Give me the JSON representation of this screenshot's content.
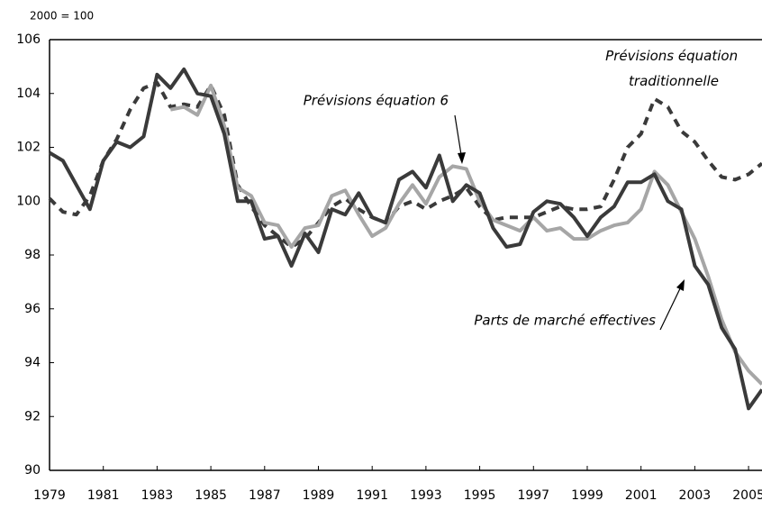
{
  "chart_data": {
    "type": "line",
    "subtitle": "2000 = 100",
    "x": [
      1979,
      1979.5,
      1980,
      1980.5,
      1981,
      1981.5,
      1982,
      1982.5,
      1983,
      1983.5,
      1984,
      1984.5,
      1985,
      1985.5,
      1986,
      1986.5,
      1987,
      1987.5,
      1988,
      1988.5,
      1989,
      1989.5,
      1990,
      1990.5,
      1991,
      1991.5,
      1992,
      1992.5,
      1993,
      1993.5,
      1994,
      1994.5,
      1995,
      1995.5,
      1996,
      1996.5,
      1997,
      1997.5,
      1998,
      1998.5,
      1999,
      1999.5,
      2000,
      2000.5,
      2001,
      2001.5,
      2002,
      2002.5,
      2003,
      2003.5,
      2004,
      2004.5,
      2005,
      2005.5
    ],
    "series": [
      {
        "name": "Parts de marché effectives",
        "color": "#3a3a3a",
        "dash": false,
        "values": [
          101.8,
          101.5,
          100.6,
          99.7,
          101.5,
          102.2,
          102.0,
          102.4,
          104.7,
          104.2,
          104.9,
          104.0,
          103.9,
          102.5,
          100.0,
          100.0,
          98.6,
          98.7,
          97.6,
          98.8,
          98.1,
          99.7,
          99.5,
          100.3,
          99.4,
          99.2,
          100.8,
          101.1,
          100.5,
          101.7,
          100.0,
          100.6,
          100.3,
          99.0,
          98.3,
          98.4,
          99.6,
          100.0,
          99.9,
          99.4,
          98.7,
          99.4,
          99.8,
          100.7,
          100.7,
          101.0,
          100.0,
          99.7,
          97.6,
          96.9,
          95.3,
          94.5,
          92.3,
          93.0
        ]
      },
      {
        "name": "Prévisions équation 6",
        "color": "#a6a6a6",
        "dash": false,
        "values": [
          null,
          null,
          null,
          null,
          null,
          null,
          null,
          null,
          null,
          103.4,
          103.5,
          103.2,
          104.3,
          102.8,
          100.5,
          100.2,
          99.2,
          99.1,
          98.3,
          99.0,
          99.1,
          100.2,
          100.4,
          99.5,
          98.7,
          99.0,
          99.9,
          100.6,
          99.9,
          100.9,
          101.3,
          101.2,
          100.0,
          99.3,
          99.1,
          98.9,
          99.4,
          98.9,
          99.0,
          98.6,
          98.6,
          98.9,
          99.1,
          99.2,
          99.7,
          101.1,
          100.6,
          99.6,
          98.6,
          97.2,
          95.6,
          94.4,
          93.7,
          93.2
        ]
      },
      {
        "name": "Prévisions équation traditionnelle",
        "color": "#3a3a3a",
        "dash": true,
        "values": [
          100.1,
          99.6,
          99.5,
          100.2,
          101.5,
          102.3,
          103.4,
          104.2,
          104.4,
          103.5,
          103.6,
          103.5,
          104.3,
          103.2,
          100.6,
          99.8,
          99.1,
          98.7,
          98.3,
          98.6,
          99.2,
          99.8,
          100.1,
          99.7,
          99.4,
          99.2,
          99.8,
          100.0,
          99.7,
          100.0,
          100.2,
          100.5,
          99.8,
          99.3,
          99.4,
          99.4,
          99.4,
          99.6,
          99.8,
          99.7,
          99.7,
          99.8,
          100.8,
          102.0,
          102.5,
          103.8,
          103.5,
          102.6,
          102.2,
          101.5,
          100.9,
          100.8,
          101.0,
          101.4
        ]
      }
    ],
    "xlim": [
      1979,
      2005.5
    ],
    "xticks": [
      1979,
      1981,
      1983,
      1985,
      1987,
      1989,
      1991,
      1993,
      1995,
      1997,
      1999,
      2001,
      2003,
      2005
    ],
    "ylim": [
      90,
      106
    ],
    "yticks": [
      90,
      92,
      94,
      96,
      98,
      100,
      102,
      104,
      106
    ]
  }
}
